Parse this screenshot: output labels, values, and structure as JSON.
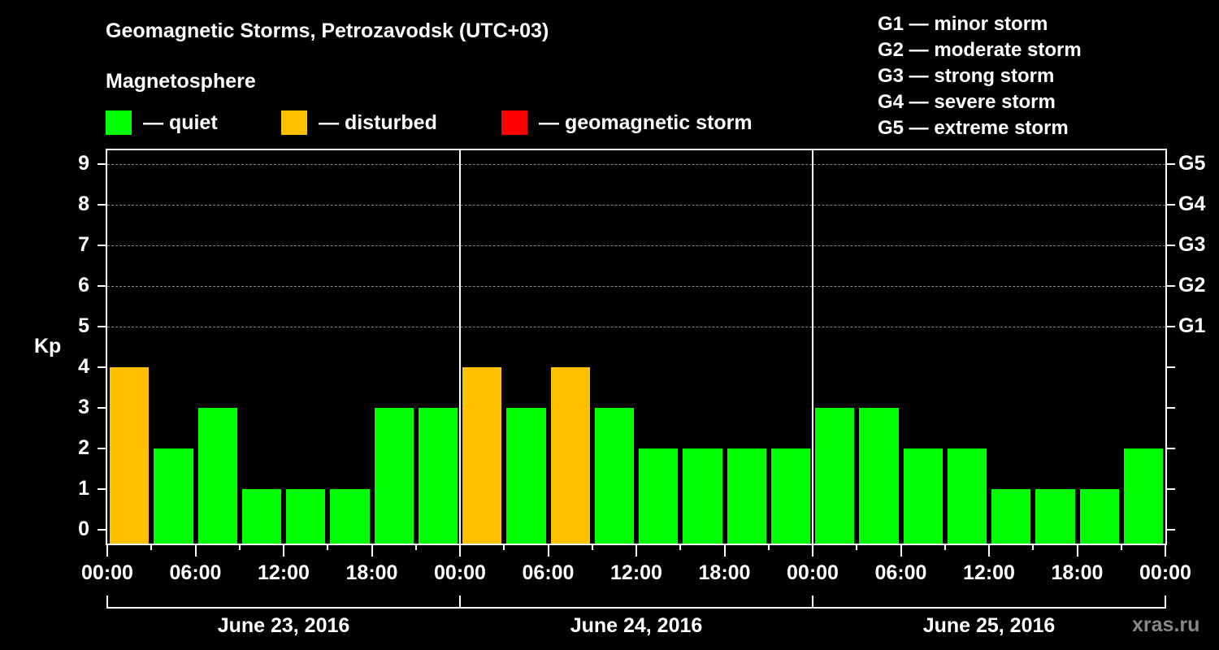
{
  "header": {
    "title": "Geomagnetic Storms, Petrozavodsk (UTC+03)",
    "subtitle": "Magnetosphere"
  },
  "legend": [
    {
      "label": "— quiet",
      "color": "#00ff00"
    },
    {
      "label": "— disturbed",
      "color": "#ffc000"
    },
    {
      "label": "— geomagnetic storm",
      "color": "#ff0000"
    }
  ],
  "g_scale": [
    "G1 — minor storm",
    "G2 — moderate storm",
    "G3 — strong storm",
    "G4 — severe storm",
    "G5 — extreme storm"
  ],
  "axis": {
    "ylabel": "Kp",
    "yticks": [
      "0",
      "1",
      "2",
      "3",
      "4",
      "5",
      "6",
      "7",
      "8",
      "9"
    ],
    "right_ticks": {
      "5": "G1",
      "6": "G2",
      "7": "G3",
      "8": "G4",
      "9": "G5"
    },
    "xticks": [
      "00:00",
      "06:00",
      "12:00",
      "18:00",
      "00:00",
      "06:00",
      "12:00",
      "18:00",
      "00:00",
      "06:00",
      "12:00",
      "18:00",
      "00:00"
    ],
    "dates": [
      "June 23, 2016",
      "June 24, 2016",
      "June 25, 2016"
    ]
  },
  "watermark": "xras.ru",
  "chart_data": {
    "type": "bar",
    "title": "Geomagnetic Storms, Petrozavodsk (UTC+03)",
    "xlabel": "",
    "ylabel": "Kp",
    "ylim": [
      0,
      9
    ],
    "grid": "dashed horizontal at Kp 5-9",
    "categories": [
      "2016-06-23 00:00",
      "2016-06-23 03:00",
      "2016-06-23 06:00",
      "2016-06-23 09:00",
      "2016-06-23 12:00",
      "2016-06-23 15:00",
      "2016-06-23 18:00",
      "2016-06-23 21:00",
      "2016-06-24 00:00",
      "2016-06-24 03:00",
      "2016-06-24 06:00",
      "2016-06-24 09:00",
      "2016-06-24 12:00",
      "2016-06-24 15:00",
      "2016-06-24 18:00",
      "2016-06-24 21:00",
      "2016-06-25 00:00",
      "2016-06-25 03:00",
      "2016-06-25 06:00",
      "2016-06-25 09:00",
      "2016-06-25 12:00",
      "2016-06-25 15:00",
      "2016-06-25 18:00",
      "2016-06-25 21:00"
    ],
    "values": [
      4,
      2,
      3,
      1,
      1,
      1,
      3,
      3,
      4,
      3,
      4,
      3,
      2,
      2,
      2,
      2,
      3,
      3,
      2,
      2,
      1,
      1,
      1,
      2
    ],
    "status": [
      "disturbed",
      "quiet",
      "quiet",
      "quiet",
      "quiet",
      "quiet",
      "quiet",
      "quiet",
      "disturbed",
      "quiet",
      "disturbed",
      "quiet",
      "quiet",
      "quiet",
      "quiet",
      "quiet",
      "quiet",
      "quiet",
      "quiet",
      "quiet",
      "quiet",
      "quiet",
      "quiet",
      "quiet"
    ],
    "colors": {
      "quiet": "#00ff00",
      "disturbed": "#ffc000",
      "storm": "#ff0000"
    },
    "legend": [
      "quiet",
      "disturbed",
      "geomagnetic storm"
    ]
  }
}
